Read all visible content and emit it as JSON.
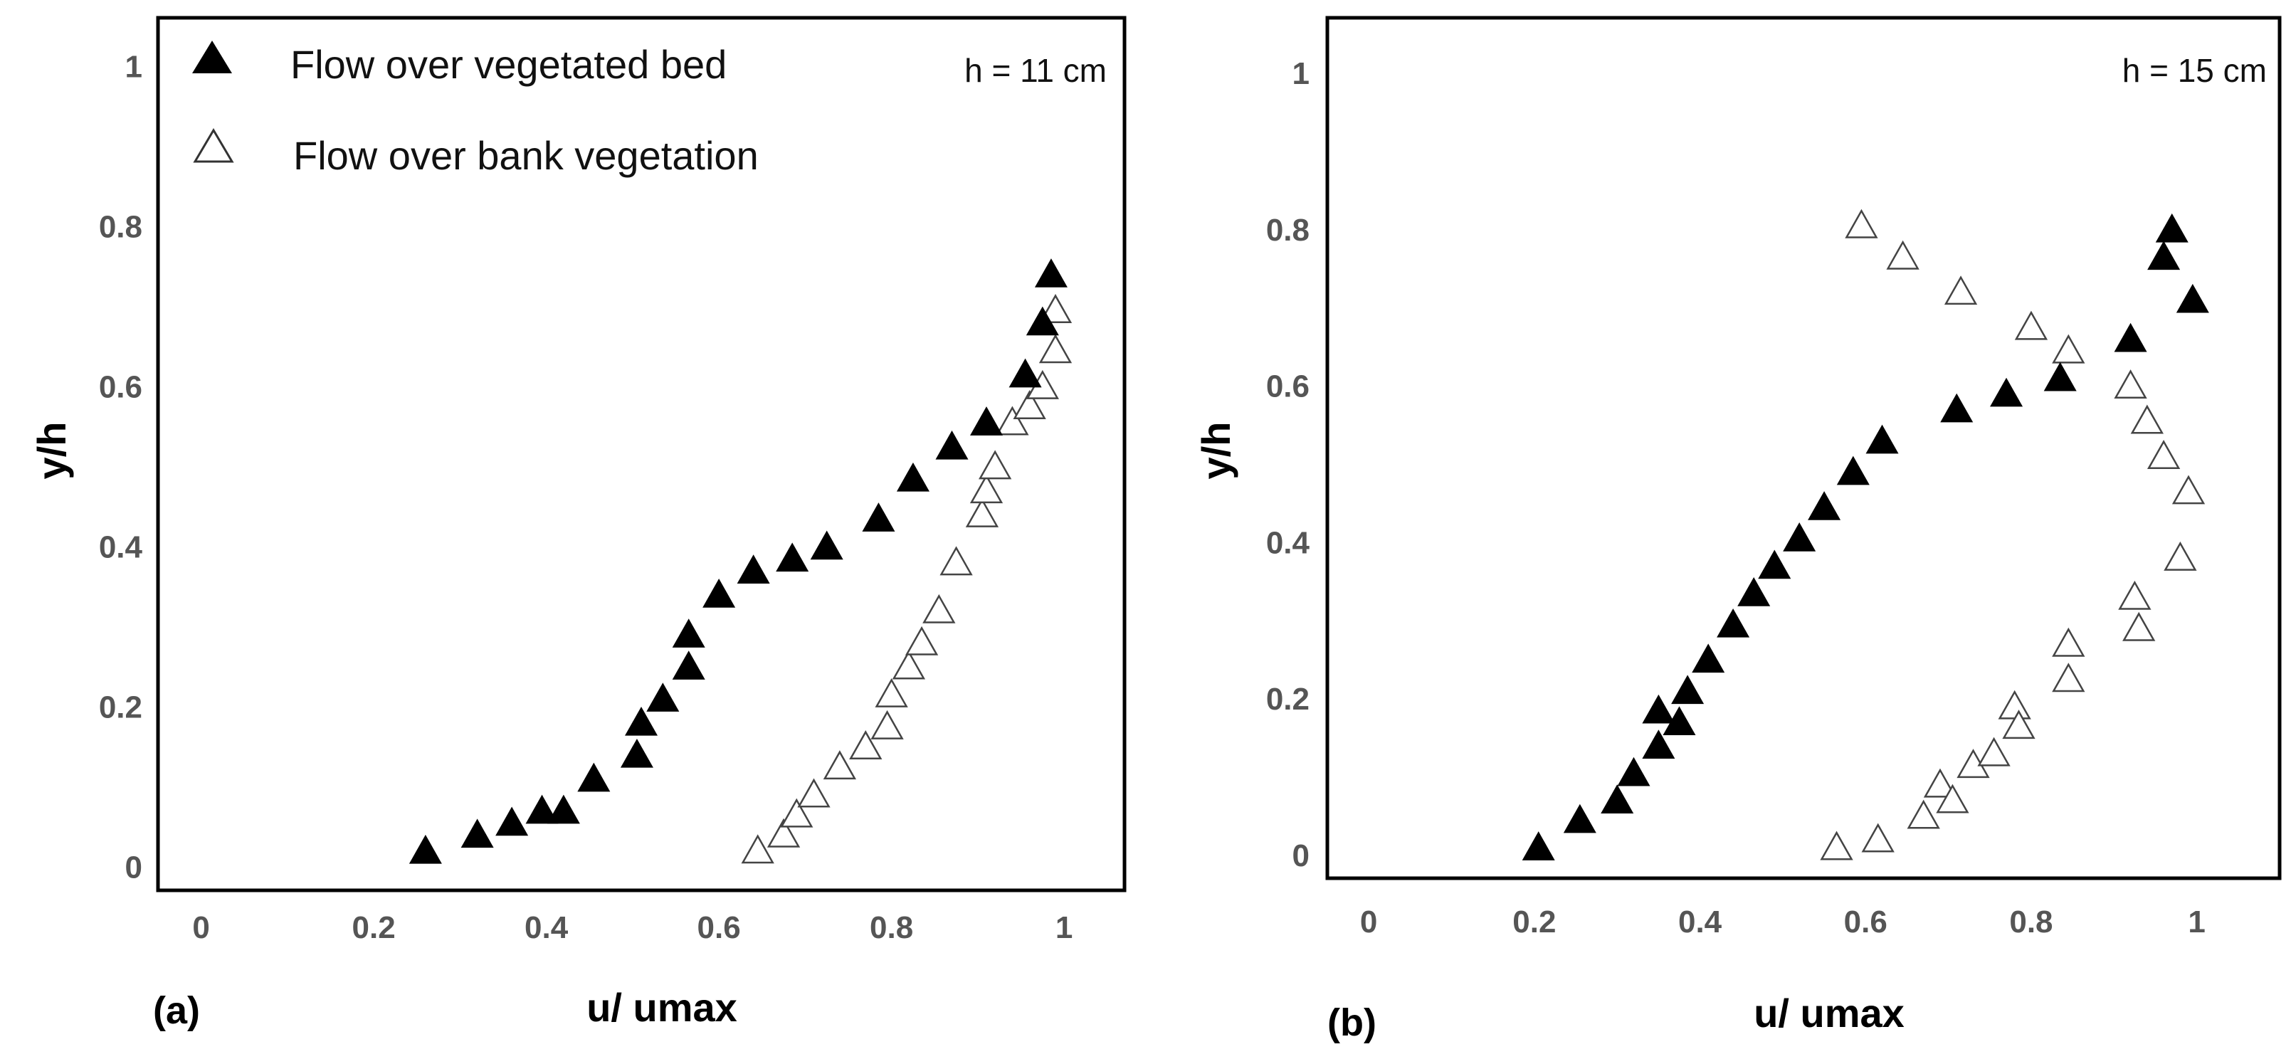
{
  "chart_data": [
    {
      "type": "scatter",
      "panel_label": "(a)",
      "annotation": "h = 11 cm",
      "xlabel": "u/ umax",
      "ylabel": "y/h",
      "xlim": [
        -0.05,
        1.07
      ],
      "ylim": [
        -0.03,
        1.06
      ],
      "xticks": [
        "0",
        "0.2",
        "0.4",
        "0.6",
        "0.8",
        "1"
      ],
      "yticks": [
        "0",
        "0.2",
        "0.4",
        "0.6",
        "0.8",
        "1"
      ],
      "legend": [
        "Flow over vegetated bed",
        "Flow over bank vegetation"
      ],
      "series": [
        {
          "name": "Flow over vegetated bed",
          "marker": "filled-triangle",
          "points": [
            [
              0.26,
              0.02
            ],
            [
              0.32,
              0.04
            ],
            [
              0.36,
              0.055
            ],
            [
              0.395,
              0.07
            ],
            [
              0.42,
              0.07
            ],
            [
              0.455,
              0.11
            ],
            [
              0.505,
              0.14
            ],
            [
              0.51,
              0.18
            ],
            [
              0.535,
              0.21
            ],
            [
              0.565,
              0.25
            ],
            [
              0.565,
              0.29
            ],
            [
              0.6,
              0.34
            ],
            [
              0.64,
              0.37
            ],
            [
              0.685,
              0.385
            ],
            [
              0.725,
              0.4
            ],
            [
              0.785,
              0.435
            ],
            [
              0.825,
              0.485
            ],
            [
              0.87,
              0.525
            ],
            [
              0.91,
              0.555
            ],
            [
              0.955,
              0.615
            ],
            [
              0.975,
              0.68
            ],
            [
              0.985,
              0.74
            ]
          ]
        },
        {
          "name": "Flow over bank vegetation",
          "marker": "hollow-triangle",
          "points": [
            [
              0.645,
              0.02
            ],
            [
              0.675,
              0.04
            ],
            [
              0.69,
              0.065
            ],
            [
              0.71,
              0.09
            ],
            [
              0.74,
              0.125
            ],
            [
              0.77,
              0.15
            ],
            [
              0.795,
              0.175
            ],
            [
              0.8,
              0.215
            ],
            [
              0.82,
              0.25
            ],
            [
              0.835,
              0.28
            ],
            [
              0.855,
              0.32
            ],
            [
              0.875,
              0.38
            ],
            [
              0.905,
              0.44
            ],
            [
              0.91,
              0.47
            ],
            [
              0.92,
              0.5
            ],
            [
              0.94,
              0.555
            ],
            [
              0.96,
              0.575
            ],
            [
              0.975,
              0.6
            ],
            [
              0.99,
              0.645
            ],
            [
              0.99,
              0.695
            ]
          ]
        }
      ]
    },
    {
      "type": "scatter",
      "panel_label": "(b)",
      "annotation": "h = 15 cm",
      "xlabel": "u/ umax",
      "ylabel": "y/h",
      "xlim": [
        -0.05,
        1.1
      ],
      "ylim": [
        -0.03,
        1.07
      ],
      "xticks": [
        "0",
        "0.2",
        "0.4",
        "0.6",
        "0.8",
        "1"
      ],
      "yticks": [
        "0",
        "0.2",
        "0.4",
        "0.6",
        "0.8",
        "1"
      ],
      "series": [
        {
          "name": "Flow over vegetated bed",
          "marker": "filled-triangle",
          "points": [
            [
              0.205,
              0.01
            ],
            [
              0.255,
              0.045
            ],
            [
              0.3,
              0.07
            ],
            [
              0.32,
              0.105
            ],
            [
              0.35,
              0.14
            ],
            [
              0.35,
              0.185
            ],
            [
              0.375,
              0.17
            ],
            [
              0.385,
              0.21
            ],
            [
              0.41,
              0.25
            ],
            [
              0.44,
              0.295
            ],
            [
              0.465,
              0.335
            ],
            [
              0.49,
              0.37
            ],
            [
              0.52,
              0.405
            ],
            [
              0.55,
              0.445
            ],
            [
              0.585,
              0.49
            ],
            [
              0.62,
              0.53
            ],
            [
              0.71,
              0.57
            ],
            [
              0.77,
              0.59
            ],
            [
              0.835,
              0.61
            ],
            [
              0.92,
              0.66
            ],
            [
              0.96,
              0.765
            ],
            [
              0.97,
              0.8
            ],
            [
              0.995,
              0.71
            ]
          ]
        },
        {
          "name": "Flow over bank vegetation",
          "marker": "hollow-triangle",
          "points": [
            [
              0.565,
              0.01
            ],
            [
              0.615,
              0.02
            ],
            [
              0.67,
              0.05
            ],
            [
              0.69,
              0.09
            ],
            [
              0.705,
              0.07
            ],
            [
              0.73,
              0.115
            ],
            [
              0.755,
              0.13
            ],
            [
              0.78,
              0.19
            ],
            [
              0.785,
              0.165
            ],
            [
              0.845,
              0.225
            ],
            [
              0.845,
              0.27
            ],
            [
              0.925,
              0.33
            ],
            [
              0.93,
              0.29
            ],
            [
              0.98,
              0.38
            ],
            [
              0.99,
              0.465
            ],
            [
              0.96,
              0.51
            ],
            [
              0.94,
              0.555
            ],
            [
              0.92,
              0.6
            ],
            [
              0.845,
              0.645
            ],
            [
              0.8,
              0.675
            ],
            [
              0.715,
              0.72
            ],
            [
              0.645,
              0.765
            ],
            [
              0.595,
              0.805
            ]
          ]
        }
      ]
    }
  ]
}
